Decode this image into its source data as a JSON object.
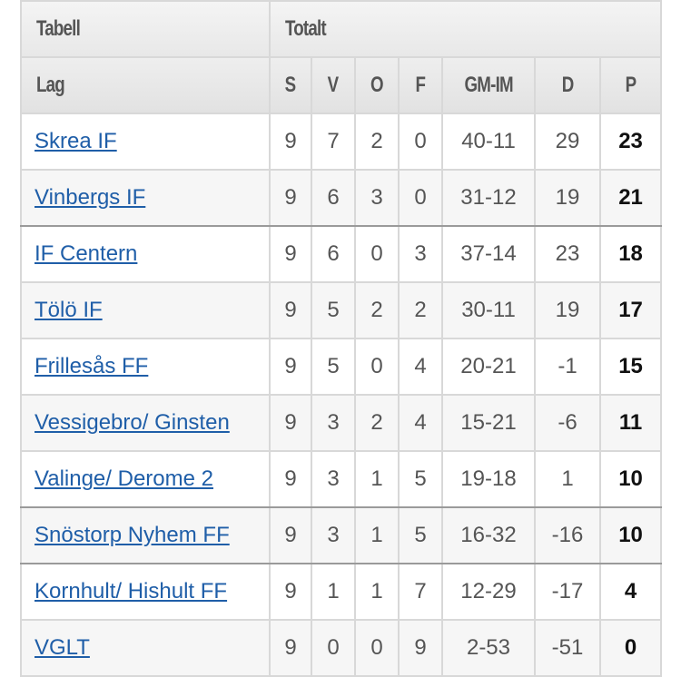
{
  "header": {
    "tabell_label": "Tabell",
    "totalt_label": "Totalt",
    "columns": {
      "lag": "Lag",
      "s": "S",
      "v": "V",
      "o": "O",
      "f": "F",
      "gm_im": "GM-IM",
      "d": "D",
      "p": "P"
    }
  },
  "rows": [
    {
      "team": "Skrea IF",
      "s": "9",
      "v": "7",
      "o": "2",
      "f": "0",
      "gm_im": "40-11",
      "d": "29",
      "p": "23"
    },
    {
      "team": "Vinbergs IF",
      "s": "9",
      "v": "6",
      "o": "3",
      "f": "0",
      "gm_im": "31-12",
      "d": "19",
      "p": "21"
    },
    {
      "team": "IF Centern",
      "s": "9",
      "v": "6",
      "o": "0",
      "f": "3",
      "gm_im": "37-14",
      "d": "23",
      "p": "18"
    },
    {
      "team": "Tölö IF",
      "s": "9",
      "v": "5",
      "o": "2",
      "f": "2",
      "gm_im": "30-11",
      "d": "19",
      "p": "17"
    },
    {
      "team": "Frillesås FF",
      "s": "9",
      "v": "5",
      "o": "0",
      "f": "4",
      "gm_im": "20-21",
      "d": "-1",
      "p": "15"
    },
    {
      "team": "Vessigebro/ Ginsten",
      "s": "9",
      "v": "3",
      "o": "2",
      "f": "4",
      "gm_im": "15-21",
      "d": "-6",
      "p": "11"
    },
    {
      "team": "Valinge/ Derome 2",
      "s": "9",
      "v": "3",
      "o": "1",
      "f": "5",
      "gm_im": "19-18",
      "d": "1",
      "p": "10"
    },
    {
      "team": "Snöstorp Nyhem FF",
      "s": "9",
      "v": "3",
      "o": "1",
      "f": "5",
      "gm_im": "16-32",
      "d": "-16",
      "p": "10"
    },
    {
      "team": "Kornhult/ Hishult FF",
      "s": "9",
      "v": "1",
      "o": "1",
      "f": "7",
      "gm_im": "12-29",
      "d": "-17",
      "p": "4"
    },
    {
      "team": "VGLT",
      "s": "9",
      "v": "0",
      "o": "0",
      "f": "9",
      "gm_im": "2-53",
      "d": "-51",
      "p": "0"
    }
  ],
  "colors": {
    "link": "#1f5ea8",
    "header_bg": "#e8e8e8",
    "separator": "#9a9a9a"
  }
}
